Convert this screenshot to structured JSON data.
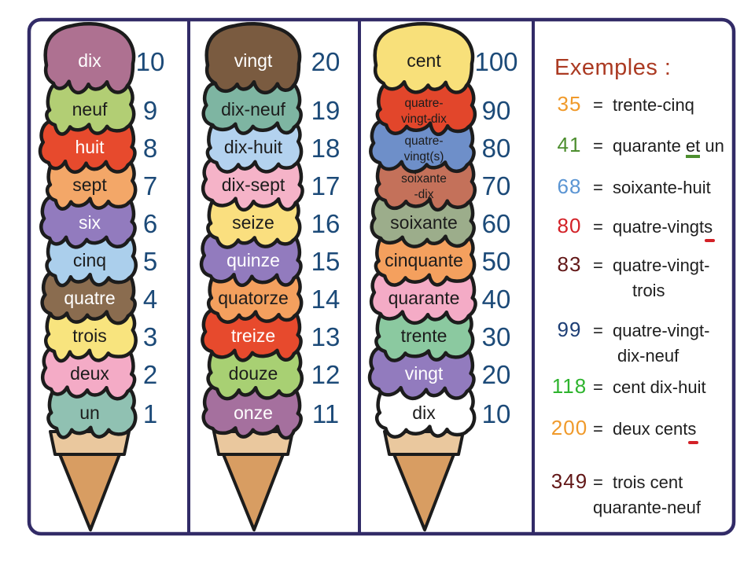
{
  "poster": {
    "border_color": "#322b67",
    "background": "#ffffff",
    "outline_color": "#1c1c1c",
    "numbers_color": "#1c4a78",
    "cone": {
      "rim_color": "#eac89e",
      "body_color": "#d89d62"
    }
  },
  "panels": [
    {
      "name": "units",
      "scoops": [
        {
          "label": "dix",
          "number": "10",
          "color": "#ae7191",
          "text_color": "#ffffff"
        },
        {
          "label": "neuf",
          "number": "9",
          "color": "#b2ce74",
          "text_color": "#1c1c1c"
        },
        {
          "label": "huit",
          "number": "8",
          "color": "#e74a2d",
          "text_color": "#ffffff"
        },
        {
          "label": "sept",
          "number": "7",
          "color": "#f3a768",
          "text_color": "#1c1c1c"
        },
        {
          "label": "six",
          "number": "6",
          "color": "#927bbe",
          "text_color": "#ffffff"
        },
        {
          "label": "cinq",
          "number": "5",
          "color": "#abcfec",
          "text_color": "#1c1c1c"
        },
        {
          "label": "quatre",
          "number": "4",
          "color": "#8a6c4f",
          "text_color": "#ffffff"
        },
        {
          "label": "trois",
          "number": "3",
          "color": "#f8e47e",
          "text_color": "#1c1c1c"
        },
        {
          "label": "deux",
          "number": "2",
          "color": "#f4abc6",
          "text_color": "#1c1c1c"
        },
        {
          "label": "un",
          "number": "1",
          "color": "#90c1b2",
          "text_color": "#1c1c1c"
        }
      ]
    },
    {
      "name": "teens",
      "scoops": [
        {
          "label": "vingt",
          "number": "20",
          "color": "#7a5b40",
          "text_color": "#ffffff"
        },
        {
          "label": "dix-neuf",
          "number": "19",
          "color": "#7eb5a2",
          "text_color": "#1c1c1c"
        },
        {
          "label": "dix-huit",
          "number": "18",
          "color": "#b3d2ef",
          "text_color": "#1c1c1c"
        },
        {
          "label": "dix-sept",
          "number": "17",
          "color": "#f5b3c8",
          "text_color": "#1c1c1c"
        },
        {
          "label": "seize",
          "number": "16",
          "color": "#fadf7f",
          "text_color": "#1c1c1c"
        },
        {
          "label": "quinze",
          "number": "15",
          "color": "#927bbe",
          "text_color": "#ffffff"
        },
        {
          "label": "quatorze",
          "number": "14",
          "color": "#f4a05e",
          "text_color": "#1c1c1c"
        },
        {
          "label": "treize",
          "number": "13",
          "color": "#e74a2d",
          "text_color": "#ffffff"
        },
        {
          "label": "douze",
          "number": "12",
          "color": "#a8d073",
          "text_color": "#1c1c1c"
        },
        {
          "label": "onze",
          "number": "11",
          "color": "#a5709e",
          "text_color": "#ffffff"
        }
      ]
    },
    {
      "name": "tens",
      "scoops": [
        {
          "label": "cent",
          "number": "100",
          "color": "#f8e07a",
          "text_color": "#1c1c1c"
        },
        {
          "lines": [
            "quatre-",
            "vingt-dix"
          ],
          "label": "quatre-vingt-dix",
          "number": "90",
          "color": "#e2462b",
          "text_color": "#1c1c1c"
        },
        {
          "lines": [
            "quatre-",
            "vingt(s)"
          ],
          "label": "quatre-vingt(s)",
          "number": "80",
          "color": "#6e8fc9",
          "text_color": "#1c1c1c"
        },
        {
          "lines": [
            "soixante",
            "-dix"
          ],
          "label": "soixante-dix",
          "number": "70",
          "color": "#c4715a",
          "text_color": "#1c1c1c"
        },
        {
          "label": "soixante",
          "number": "60",
          "color": "#9cad8b",
          "text_color": "#1c1c1c"
        },
        {
          "label": "cinquante",
          "number": "50",
          "color": "#f4a05e",
          "text_color": "#1c1c1c"
        },
        {
          "label": "quarante",
          "number": "40",
          "color": "#f4abc6",
          "text_color": "#1c1c1c"
        },
        {
          "label": "trente",
          "number": "30",
          "color": "#8bc9a0",
          "text_color": "#1c1c1c"
        },
        {
          "label": "vingt",
          "number": "20",
          "color": "#927bbe",
          "text_color": "#ffffff"
        },
        {
          "label": "dix",
          "number": "10",
          "color": "#ffffff",
          "text_color": "#1c1c1c"
        }
      ]
    }
  ],
  "examples": {
    "title": "Exemples :",
    "title_color": "#ab3a22",
    "equals_sign": "=",
    "items": [
      {
        "number": "35",
        "color": "#f09a2b",
        "segments": [
          {
            "t": "trente-cinq"
          }
        ]
      },
      {
        "number": "41",
        "color": "#4d8e2f",
        "segments": [
          {
            "t": "quarante "
          },
          {
            "t": "et",
            "mark": "ul-green"
          },
          {
            "t": " un"
          }
        ]
      },
      {
        "number": "68",
        "color": "#5b95d3",
        "segments": [
          {
            "t": "soixante-huit"
          }
        ]
      },
      {
        "number": "80",
        "color": "#d32127",
        "segments": [
          {
            "t": "quatre-vingt"
          },
          {
            "t": "s",
            "mark": "red-underscore"
          }
        ]
      },
      {
        "number": "83",
        "color": "#621717",
        "segments": [
          {
            "t": "quatre-vingt-"
          }
        ],
        "line2": "trois"
      },
      {
        "number": "99",
        "color": "#1d3e75",
        "segments": [
          {
            "t": "quatre-vingt-"
          }
        ],
        "line2": "dix-neuf"
      },
      {
        "number": "118",
        "color": "#2eb42e",
        "segments": [
          {
            "t": "cent dix-huit"
          }
        ]
      },
      {
        "number": "200",
        "color": "#f09a2b",
        "segments": [
          {
            "t": "deux cent"
          },
          {
            "t": "s",
            "mark": "red-underscore"
          }
        ]
      },
      {
        "number": "349",
        "color": "#621717",
        "segments": [
          {
            "t": "trois cent"
          }
        ],
        "line2": "quarante-neuf"
      }
    ]
  }
}
